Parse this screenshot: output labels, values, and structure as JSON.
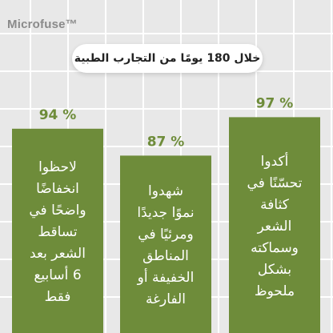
{
  "brand": "Microfuse™",
  "subtitle": "خلال 180 يومًا من التجارب الطبية",
  "colors": {
    "bar": "#6e8c3a",
    "value_label": "#6e8c3a",
    "background": "#e8e8e8",
    "grid": "#ffffff"
  },
  "chart_data": {
    "type": "bar",
    "title": "خلال 180 يومًا من التجارب الطبية",
    "categories": [
      "لاحظوا انخفاضًا واضحًا في تساقط الشعر بعد 6 أسابيع فقط",
      "شهدوا نموًا جديدًا ومرئيًا في المناطق الخفيفة أو الفارغة",
      "أكدوا تحسّنًا في كثافة الشعر وسماكته بشكل ملحوظ"
    ],
    "values": [
      94,
      87,
      97
    ],
    "value_labels": [
      "94 %",
      "87 %",
      "97 %"
    ],
    "bar_texts": [
      [
        "لاحظوا",
        "انخفاضًا",
        "واضحًا في",
        "تساقط",
        "الشعر بعد",
        "6 أسابيع",
        "فقط"
      ],
      [
        "شهدوا",
        "نموًا جديدًا",
        "ومرئيًا في",
        "المناطق",
        "الخفيفة أو",
        "الفارغة"
      ],
      [
        "أكدوا",
        "تحسّنًا في",
        "كثافة",
        "الشعر",
        "وسماكته",
        "بشكل",
        "ملحوظ"
      ]
    ],
    "ylim": [
      0,
      100
    ],
    "grid": true,
    "legend": "none"
  }
}
